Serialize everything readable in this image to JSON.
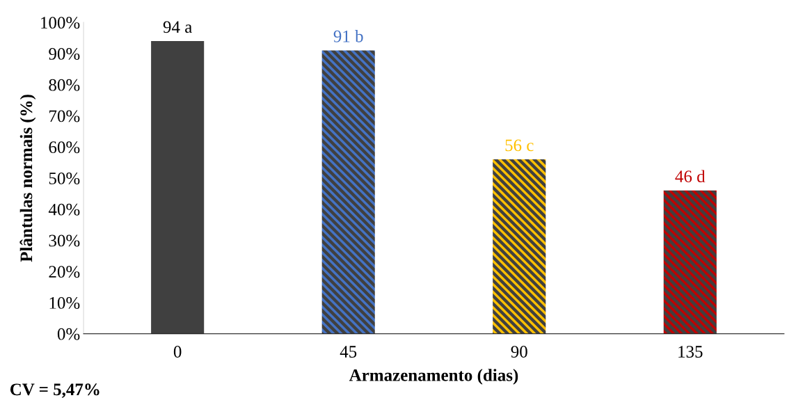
{
  "chart_data": {
    "type": "bar",
    "xlabel": "Armazenamento (dias)",
    "ylabel": "Plântulas normais (%)",
    "categories": [
      "0",
      "45",
      "90",
      "135"
    ],
    "values": [
      94,
      91,
      56,
      46
    ],
    "colors": [
      "#404040",
      "#4472c4",
      "#ffc000",
      "#c00000"
    ],
    "value_labels": [
      "94 a",
      "91 b",
      "56 c",
      "46 d"
    ],
    "ylim": [
      0,
      100
    ],
    "yticks": [
      {
        "value": 0,
        "label": "0%"
      },
      {
        "value": 10,
        "label": "10%"
      },
      {
        "value": 20,
        "label": "20%"
      },
      {
        "value": 30,
        "label": "30%"
      },
      {
        "value": 40,
        "label": "40%"
      },
      {
        "value": 50,
        "label": "50%"
      },
      {
        "value": 60,
        "label": "60%"
      },
      {
        "value": 70,
        "label": "70%"
      },
      {
        "value": 80,
        "label": "80%"
      },
      {
        "value": 90,
        "label": "90%"
      },
      {
        "value": 100,
        "label": "100%"
      }
    ],
    "grid": false,
    "legend": false,
    "annotations": [
      "CV = 5,47%"
    ]
  }
}
